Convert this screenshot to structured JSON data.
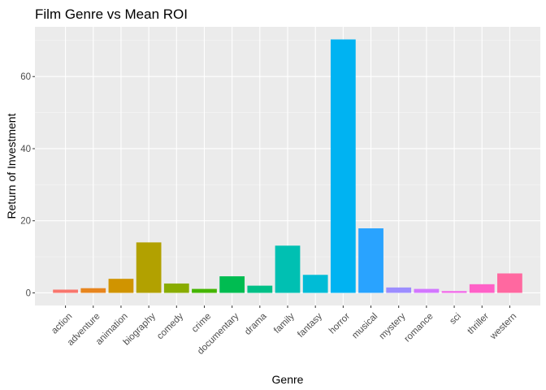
{
  "chart_data": {
    "type": "bar",
    "title": "Film Genre vs Mean ROI",
    "xlabel": "Genre",
    "ylabel": "Return of Investment",
    "categories": [
      "action",
      "adventure",
      "animation",
      "biography",
      "comedy",
      "crime",
      "documentary",
      "drama",
      "family",
      "fantasy",
      "horror",
      "musical",
      "mystery",
      "romance",
      "sci",
      "thriller",
      "western"
    ],
    "values": [
      0.9,
      1.3,
      3.9,
      14.0,
      2.6,
      1.1,
      4.6,
      2.0,
      13.1,
      5.0,
      70.3,
      17.9,
      1.5,
      1.1,
      0.5,
      2.4,
      5.4
    ],
    "colors": [
      "#F8766D",
      "#E7851E",
      "#D09400",
      "#B2A100",
      "#89AC00",
      "#45B500",
      "#00BC51",
      "#00C087",
      "#00C0B2",
      "#00BCD6",
      "#00B3F2",
      "#29A3FF",
      "#9C8DFF",
      "#D277FF",
      "#F166E8",
      "#FF61C7",
      "#FF68A0"
    ],
    "yticks": [
      0,
      20,
      40,
      60
    ],
    "ylim": [
      -3.5,
      73.8
    ],
    "grid": true,
    "legend": "none"
  }
}
